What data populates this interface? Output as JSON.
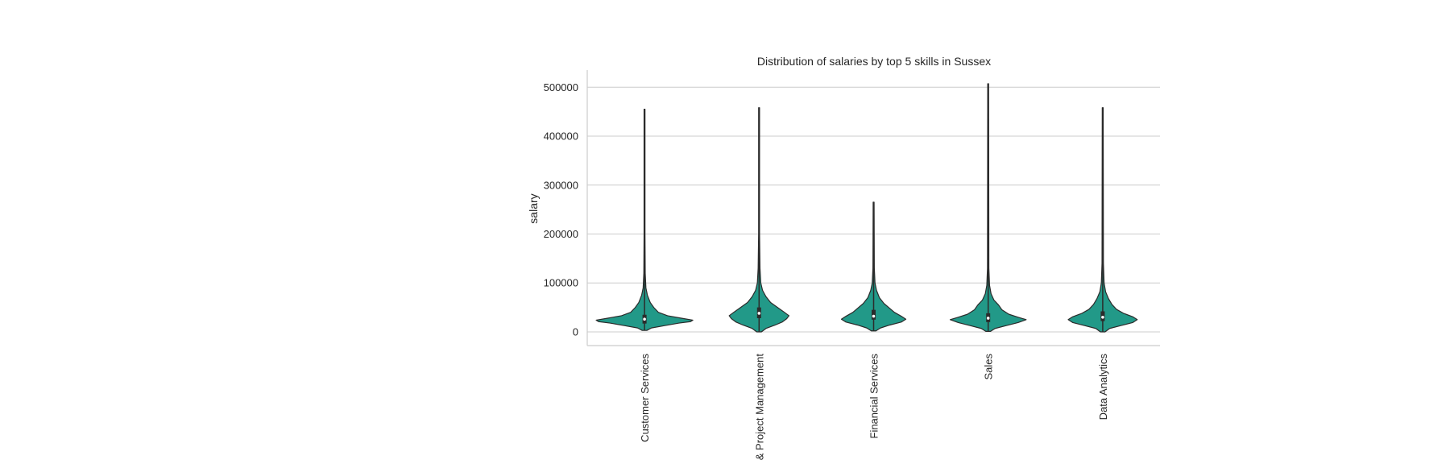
{
  "chart_data": {
    "type": "violin",
    "title": "Distribution of salaries by top 5 skills in Sussex",
    "xlabel": "",
    "ylabel": "salary",
    "ylim": [
      -28000,
      535000
    ],
    "yticks": [
      0,
      100000,
      200000,
      300000,
      400000,
      500000
    ],
    "grid": "horizontal",
    "color": "#229988",
    "edge_color": "#2b2b2b",
    "categories": [
      "Customer Services",
      "& Project Management",
      "Financial Services",
      "Sales",
      "Data Analytics"
    ],
    "violins": [
      {
        "category": "Customer Services",
        "min": 3000,
        "max": 455000,
        "q1": 17000,
        "median": 26000,
        "q3": 35000,
        "density": [
          [
            3000,
            0.02
          ],
          [
            8000,
            0.06
          ],
          [
            13000,
            0.18
          ],
          [
            18000,
            0.3
          ],
          [
            21000,
            0.4
          ],
          [
            24000,
            0.42
          ],
          [
            28000,
            0.32
          ],
          [
            33000,
            0.2
          ],
          [
            40000,
            0.12
          ],
          [
            50000,
            0.08
          ],
          [
            60000,
            0.05
          ],
          [
            75000,
            0.025
          ],
          [
            90000,
            0.012
          ],
          [
            120000,
            0.006
          ],
          [
            200000,
            0.004
          ],
          [
            455000,
            0.004
          ]
        ]
      },
      {
        "category": "& Project Management",
        "min": 0,
        "max": 458000,
        "q1": 28000,
        "median": 38000,
        "q3": 50000,
        "density": [
          [
            0,
            0.02
          ],
          [
            7000,
            0.06
          ],
          [
            14000,
            0.14
          ],
          [
            20000,
            0.2
          ],
          [
            27000,
            0.24
          ],
          [
            33000,
            0.26
          ],
          [
            40000,
            0.22
          ],
          [
            50000,
            0.16
          ],
          [
            60000,
            0.1
          ],
          [
            72000,
            0.06
          ],
          [
            85000,
            0.03
          ],
          [
            100000,
            0.015
          ],
          [
            130000,
            0.008
          ],
          [
            200000,
            0.004
          ],
          [
            458000,
            0.004
          ]
        ]
      },
      {
        "category": "Financial Services",
        "min": 2000,
        "max": 265000,
        "q1": 25000,
        "median": 32000,
        "q3": 45000,
        "density": [
          [
            2000,
            0.02
          ],
          [
            8000,
            0.06
          ],
          [
            14000,
            0.14
          ],
          [
            20000,
            0.24
          ],
          [
            26000,
            0.28
          ],
          [
            32000,
            0.24
          ],
          [
            40000,
            0.18
          ],
          [
            48000,
            0.14
          ],
          [
            58000,
            0.09
          ],
          [
            70000,
            0.05
          ],
          [
            85000,
            0.025
          ],
          [
            100000,
            0.012
          ],
          [
            130000,
            0.006
          ],
          [
            265000,
            0.004
          ]
        ]
      },
      {
        "category": "Sales",
        "min": 1000,
        "max": 507000,
        "q1": 20000,
        "median": 28000,
        "q3": 38000,
        "density": [
          [
            1000,
            0.02
          ],
          [
            7000,
            0.06
          ],
          [
            13000,
            0.16
          ],
          [
            19000,
            0.26
          ],
          [
            25000,
            0.33
          ],
          [
            30000,
            0.26
          ],
          [
            36000,
            0.18
          ],
          [
            45000,
            0.12
          ],
          [
            55000,
            0.09
          ],
          [
            65000,
            0.05
          ],
          [
            78000,
            0.025
          ],
          [
            95000,
            0.012
          ],
          [
            130000,
            0.006
          ],
          [
            507000,
            0.004
          ]
        ]
      },
      {
        "category": "Data Analytics",
        "min": 0,
        "max": 458000,
        "q1": 22000,
        "median": 30000,
        "q3": 42000,
        "density": [
          [
            0,
            0.02
          ],
          [
            7000,
            0.06
          ],
          [
            13000,
            0.16
          ],
          [
            19000,
            0.26
          ],
          [
            25000,
            0.3
          ],
          [
            31000,
            0.26
          ],
          [
            38000,
            0.18
          ],
          [
            46000,
            0.12
          ],
          [
            56000,
            0.08
          ],
          [
            68000,
            0.05
          ],
          [
            82000,
            0.025
          ],
          [
            100000,
            0.012
          ],
          [
            140000,
            0.006
          ],
          [
            458000,
            0.004
          ]
        ]
      }
    ]
  }
}
